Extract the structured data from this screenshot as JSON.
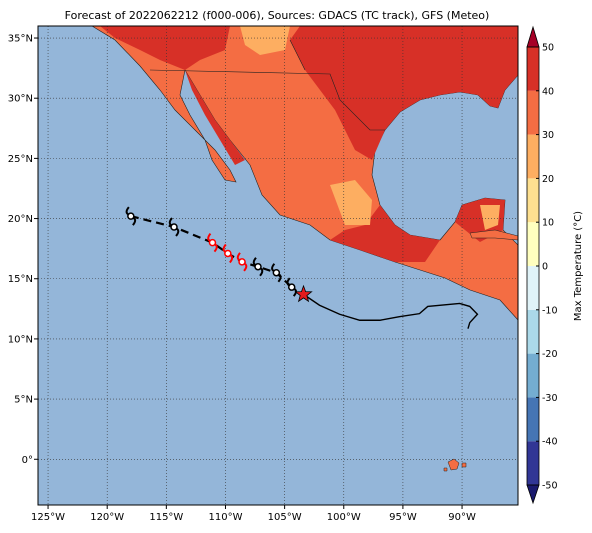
{
  "title": "Forecast of 2022062212 (f000-006), Sources: GDACS (TC track), GFS (Meteo)",
  "map": {
    "lon_range": [
      -125.85,
      -85.27
    ],
    "lat_range": [
      -3.8,
      36.0
    ],
    "ocean_color": "#94b6d9",
    "lon_ticks": [
      {
        "value": -125,
        "label": "125°W"
      },
      {
        "value": -120,
        "label": "120°W"
      },
      {
        "value": -115,
        "label": "115°W"
      },
      {
        "value": -110,
        "label": "110°W"
      },
      {
        "value": -105,
        "label": "105°W"
      },
      {
        "value": -100,
        "label": "100°W"
      },
      {
        "value": -95,
        "label": "95°W"
      },
      {
        "value": -90,
        "label": "90°W"
      }
    ],
    "lat_ticks": [
      {
        "value": 0,
        "label": "0°"
      },
      {
        "value": 5,
        "label": "5°N"
      },
      {
        "value": 10,
        "label": "10°N"
      },
      {
        "value": 15,
        "label": "15°N"
      },
      {
        "value": 20,
        "label": "20°N"
      },
      {
        "value": 25,
        "label": "25°N"
      },
      {
        "value": 30,
        "label": "30°N"
      },
      {
        "value": 35,
        "label": "35°N"
      }
    ],
    "grid": true
  },
  "colorbar": {
    "label": "Max Temperature (°C)",
    "ticks": [
      -50,
      -40,
      -30,
      -20,
      -10,
      0,
      10,
      20,
      30,
      40,
      50
    ],
    "colors": [
      "#313695",
      "#4575b4",
      "#74add1",
      "#abd9e9",
      "#e0f3f8",
      "#ffffbf",
      "#fee090",
      "#fdae61",
      "#f46d43",
      "#d73027"
    ],
    "under_color": "#1a1a6e",
    "over_color": "#a50026"
  },
  "track": {
    "forecast": {
      "lon": [
        -118.0,
        -114.35,
        -111.1,
        -109.8,
        -108.6,
        -107.25,
        -105.7,
        -104.4
      ],
      "lat": [
        20.2,
        19.3,
        18.0,
        17.1,
        16.4,
        16.0,
        15.5,
        14.3
      ],
      "colors": [
        "#000000",
        "#000000",
        "#ff0000",
        "#ff0000",
        "#ff0000",
        "#000000",
        "#000000",
        "#000000"
      ]
    },
    "past": {
      "lon": [
        -103.4,
        -102.05,
        -100.35,
        -98.65,
        -96.95,
        -95.3,
        -93.6,
        -92.9,
        -90.2,
        -89.35,
        -88.7,
        -89.35,
        -89.5
      ],
      "lat": [
        13.7,
        12.8,
        12.05,
        11.55,
        11.55,
        11.85,
        12.1,
        12.7,
        12.95,
        12.7,
        12.05,
        11.35,
        10.85
      ]
    },
    "current": {
      "lon": -103.4,
      "lat": 13.7
    }
  }
}
